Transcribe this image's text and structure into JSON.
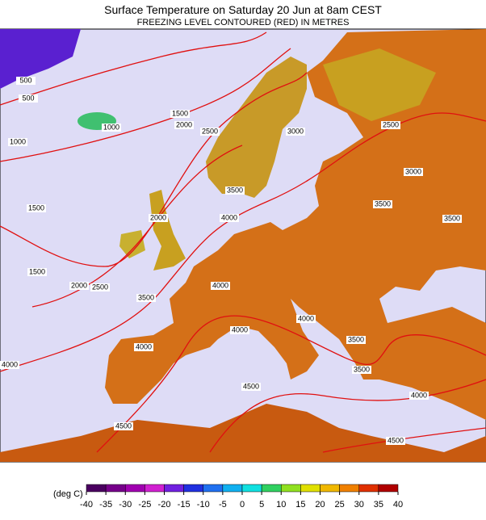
{
  "header": {
    "title": "Surface Temperature on Saturday 20 Jun at 8am CEST",
    "subtitle": "FREEZING LEVEL CONTOURED (RED) IN METRES"
  },
  "contour_labels": [
    500,
    500,
    1000,
    1000,
    1500,
    2000,
    2500,
    3000,
    2500,
    3000,
    3500,
    3500,
    3500,
    4000,
    2000,
    1500,
    1500,
    2000,
    2500,
    3500,
    4000,
    4000,
    4000,
    3500,
    3500,
    4000,
    4000,
    4500,
    4500,
    4000,
    4500
  ],
  "legend": {
    "unit_label": "(deg C)",
    "ticks": [
      -40,
      -35,
      -30,
      -25,
      -20,
      -15,
      -10,
      -5,
      0,
      5,
      10,
      15,
      20,
      25,
      30,
      35,
      40
    ],
    "colors": [
      "#4a0060",
      "#76008a",
      "#a000b0",
      "#d020d0",
      "#7020e0",
      "#2030e0",
      "#2070f0",
      "#10b0f0",
      "#10e0e0",
      "#30d060",
      "#90e020",
      "#e0e000",
      "#f0b800",
      "#f08000",
      "#e03000",
      "#b00000"
    ]
  }
}
